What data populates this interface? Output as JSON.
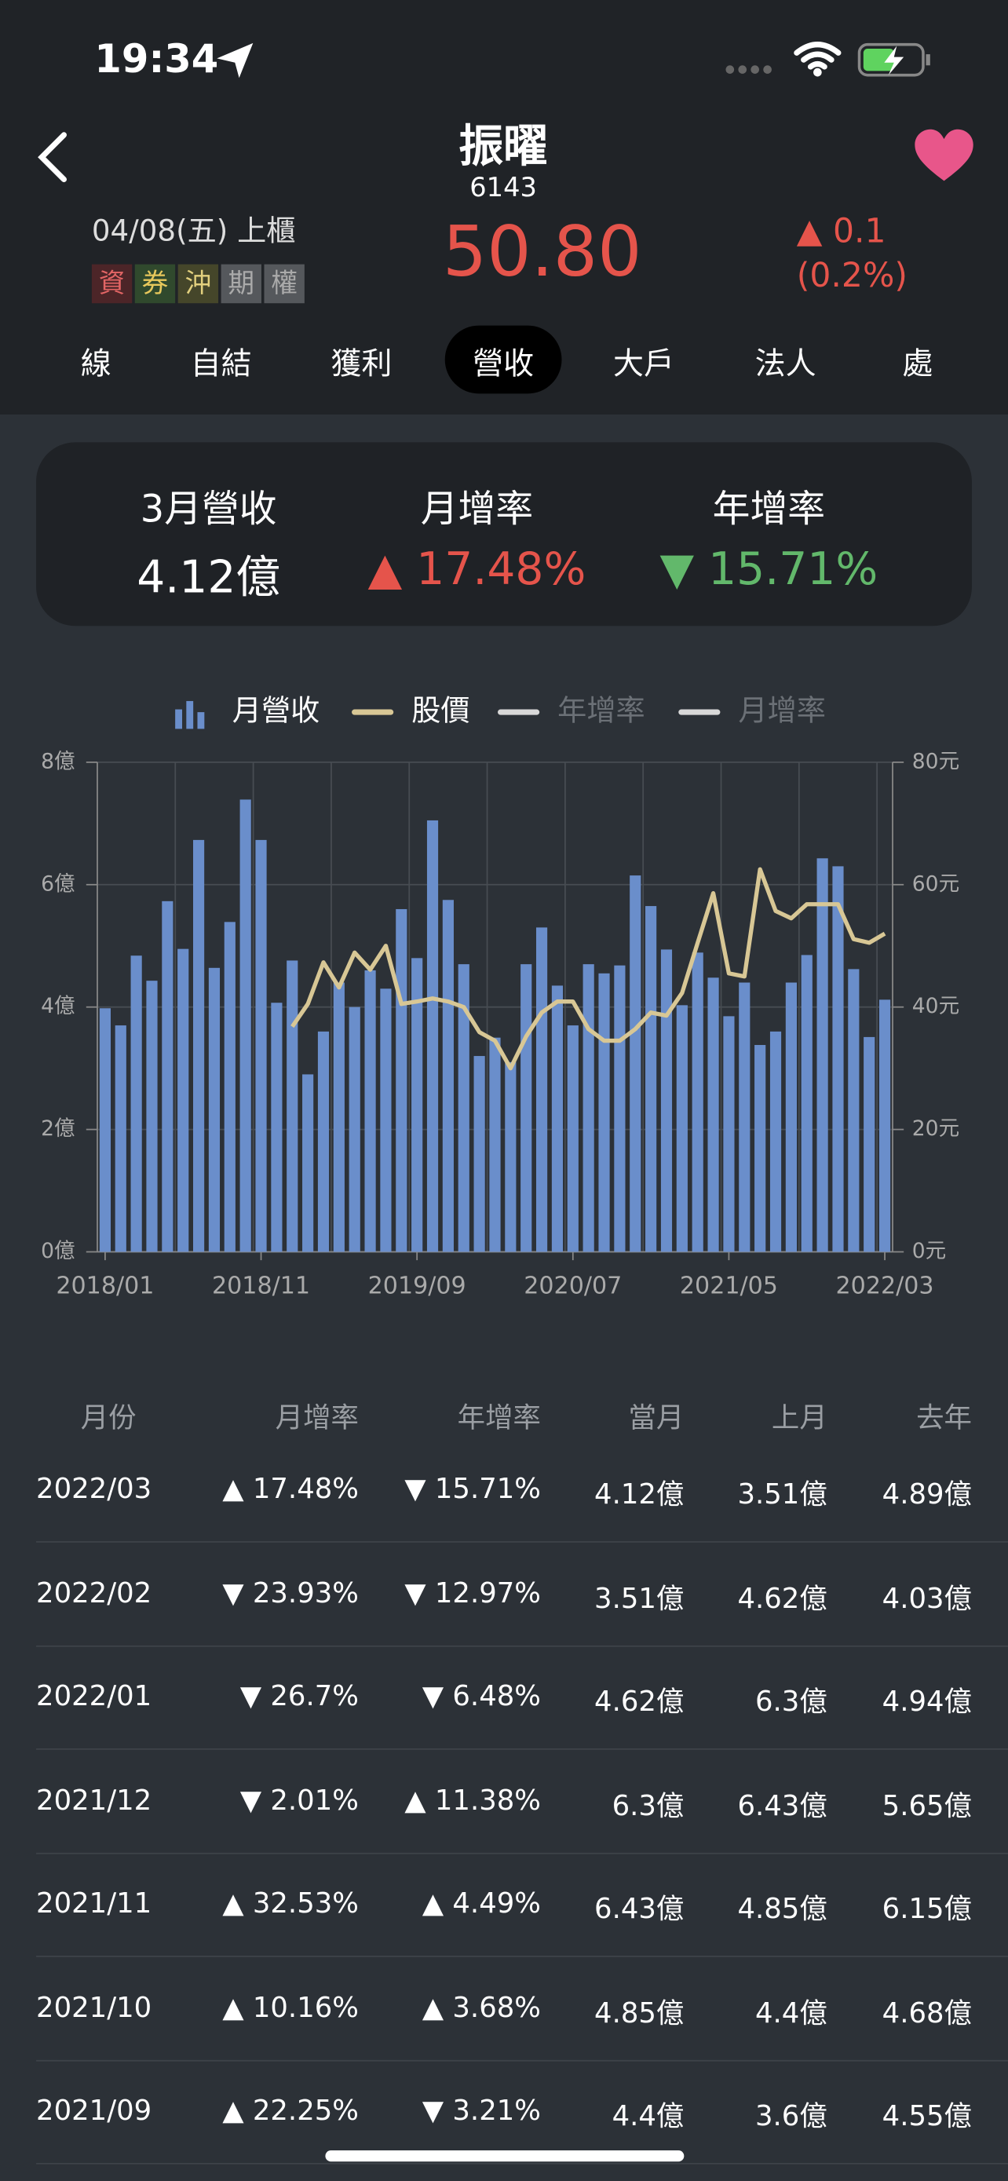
{
  "status_bar": {
    "time": "19:34"
  },
  "header": {
    "name": "振曜",
    "code": "6143",
    "date": "04/08(五) 上櫃",
    "tags": [
      "資",
      "券",
      "沖",
      "期",
      "權"
    ],
    "price": "50.80",
    "change": "▲ 0.1",
    "change_pct": "(0.2%)"
  },
  "tabs": [
    "線",
    "自結",
    "獲利",
    "營收",
    "大戶",
    "法人",
    "處"
  ],
  "active_tab": 3,
  "summary": [
    {
      "label": "3月營收",
      "value": "4.12億"
    },
    {
      "label": "月增率",
      "value": "▲ 17.48%"
    },
    {
      "label": "年增率",
      "value": "▼ 15.71%"
    }
  ],
  "chart_data": {
    "type": "combo",
    "categories": [
      "2018/01",
      null,
      null,
      null,
      null,
      null,
      null,
      null,
      null,
      null,
      "2018/11",
      null,
      null,
      null,
      null,
      null,
      null,
      null,
      null,
      null,
      "2019/09",
      null,
      null,
      null,
      null,
      null,
      null,
      null,
      null,
      null,
      "2020/07",
      null,
      null,
      null,
      null,
      null,
      null,
      null,
      null,
      null,
      "2021/05",
      null,
      null,
      null,
      null,
      null,
      null,
      null,
      null,
      null,
      "2022/03"
    ],
    "series": [
      {
        "name": "月營收",
        "type": "bar",
        "color": "#6a8ecb",
        "values": [
          3.98,
          3.7,
          4.84,
          4.43,
          5.73,
          4.95,
          6.73,
          4.64,
          5.39,
          7.39,
          6.73,
          4.07,
          4.76,
          2.9,
          3.6,
          4.4,
          4.0,
          4.6,
          4.3,
          5.6,
          4.8,
          7.05,
          5.75,
          4.7,
          3.2,
          3.5,
          3.1,
          4.7,
          5.3,
          4.35,
          3.7,
          4.7,
          4.55,
          4.68,
          6.15,
          5.65,
          4.94,
          4.03,
          4.89,
          4.48,
          3.85,
          4.4,
          3.38,
          3.6,
          4.4,
          4.85,
          6.43,
          6.3,
          4.62,
          3.51,
          4.12
        ]
      },
      {
        "name": "股價",
        "type": "line",
        "axis": "y2",
        "color": "#d8c795",
        "values": [
          null,
          null,
          null,
          null,
          null,
          null,
          null,
          null,
          null,
          null,
          null,
          null,
          36.8,
          40.5,
          47.3,
          43.2,
          48.9,
          46.1,
          50,
          40.5,
          40.9,
          41.4,
          40.9,
          40,
          35.9,
          34.5,
          30,
          35.2,
          39.1,
          40.9,
          40.9,
          36.4,
          34.5,
          34.5,
          36.4,
          39.1,
          38.6,
          42.3,
          50.5,
          58.6,
          45.5,
          45,
          62.5,
          55.7,
          54.5,
          56.8,
          56.8,
          56.8,
          51.1,
          50.5,
          52
        ]
      },
      {
        "name": "年增率",
        "color": "#d8d8d8",
        "hidden": true
      },
      {
        "name": "月增率",
        "color": "#d8d8d8",
        "hidden": true
      }
    ],
    "ylim": [
      0,
      8
    ],
    "yticks": [
      {
        "value": 0,
        "label": "0億"
      },
      {
        "value": 2,
        "label": "2億"
      },
      {
        "value": 4,
        "label": "4億"
      },
      {
        "value": 6,
        "label": "6億"
      },
      {
        "value": 8,
        "label": "8億"
      }
    ],
    "y2lim": [
      0,
      80
    ],
    "y2ticks": [
      {
        "value": 0,
        "label": "0元"
      },
      {
        "value": 20,
        "label": "20元"
      },
      {
        "value": 40,
        "label": "40元"
      },
      {
        "value": 60,
        "label": "60元"
      },
      {
        "value": 80,
        "label": "80元"
      }
    ],
    "grid": true
  },
  "table": {
    "columns": [
      "月份",
      "月增率",
      "年增率",
      "當月",
      "上月",
      "去年"
    ],
    "rows": [
      [
        "2022/03",
        "▲ 17.48%",
        "▼ 15.71%",
        "4.12億",
        "3.51億",
        "4.89億"
      ],
      [
        "2022/02",
        "▼ 23.93%",
        "▼ 12.97%",
        "3.51億",
        "4.62億",
        "4.03億"
      ],
      [
        "2022/01",
        "▼ 26.7%",
        "▼ 6.48%",
        "4.62億",
        "6.3億",
        "4.94億"
      ],
      [
        "2021/12",
        "▼ 2.01%",
        "▲ 11.38%",
        "6.3億",
        "6.43億",
        "5.65億"
      ],
      [
        "2021/11",
        "▲ 32.53%",
        "▲ 4.49%",
        "6.43億",
        "4.85億",
        "6.15億"
      ],
      [
        "2021/10",
        "▲ 10.16%",
        "▲ 3.68%",
        "4.85億",
        "4.4億",
        "4.68億"
      ],
      [
        "2021/09",
        "▲ 22.25%",
        "▼ 3.21%",
        "4.4億",
        "3.6億",
        "4.55億"
      ]
    ]
  }
}
